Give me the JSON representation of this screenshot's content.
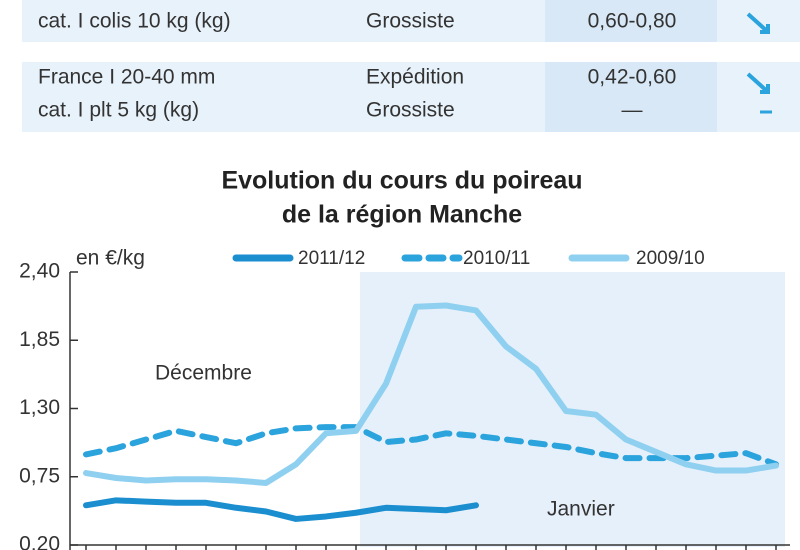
{
  "table": {
    "rows": [
      {
        "product": [
          "cat. I colis 10 kg (kg)"
        ],
        "market": [
          "Grossiste"
        ],
        "price": [
          "0,60-0,80"
        ]
      },
      {
        "product": [
          "France I 20-40 mm",
          "cat. I plt 5 kg (kg)"
        ],
        "market": [
          "Expédition",
          "Grossiste"
        ],
        "price": [
          "0,42-0,60",
          "—"
        ]
      }
    ]
  },
  "chart_data": {
    "type": "line",
    "title": [
      "Evolution du cours du poireau",
      "de la région Manche"
    ],
    "y_label": "en €/kg",
    "annotations": [
      "Décembre",
      "Janvier"
    ],
    "categories": [
      null,
      null,
      null,
      null,
      null,
      null,
      null,
      null,
      null,
      null,
      null,
      null,
      null,
      null,
      null,
      null,
      null,
      null,
      null,
      null,
      null,
      null,
      null,
      null
    ],
    "ylim": [
      0.2,
      2.4
    ],
    "yticks": [
      {
        "value": 0.2,
        "label": "0,20"
      },
      {
        "value": 0.75,
        "label": "0,75"
      },
      {
        "value": 1.3,
        "label": "1,30"
      },
      {
        "value": 1.85,
        "label": "1,85"
      },
      {
        "value": 2.4,
        "label": "2,40"
      }
    ],
    "series": [
      {
        "name": "2011/12",
        "color": "#1b8ed0",
        "style": "solid",
        "values": [
          0.52,
          0.56,
          0.55,
          0.54,
          0.54,
          0.5,
          0.47,
          0.41,
          0.43,
          0.46,
          0.5,
          0.49,
          0.48,
          0.52,
          null,
          null,
          null,
          null,
          null,
          null,
          null,
          null,
          null,
          null
        ]
      },
      {
        "name": "2010/11",
        "color": "#2ba3dc",
        "style": "dashed",
        "values": [
          0.93,
          0.98,
          1.05,
          1.12,
          1.07,
          1.02,
          1.1,
          1.14,
          1.15,
          1.15,
          1.03,
          1.05,
          1.1,
          1.08,
          1.05,
          1.02,
          0.99,
          0.94,
          0.9,
          0.9,
          0.9,
          0.92,
          0.94,
          0.85
        ]
      },
      {
        "name": "2009/10",
        "color": "#8fd0f0",
        "style": "solid",
        "values": [
          0.78,
          0.74,
          0.72,
          0.73,
          0.73,
          0.72,
          0.7,
          0.85,
          1.1,
          1.12,
          1.5,
          2.12,
          2.13,
          2.09,
          1.8,
          1.62,
          1.28,
          1.25,
          1.05,
          0.95,
          0.85,
          0.8,
          0.8,
          0.84
        ]
      }
    ]
  }
}
